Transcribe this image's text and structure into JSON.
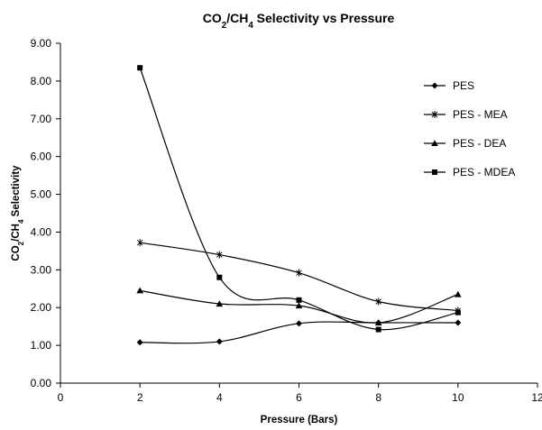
{
  "chart_data": {
    "type": "line",
    "title": "CO2/CH4 Selectivity vs Pressure",
    "xlabel": "Pressure (Bars)",
    "ylabel": "CO2/CH4 Selectivity",
    "xlim": [
      0,
      12
    ],
    "ylim": [
      0,
      9
    ],
    "xticks": [
      0,
      2,
      4,
      6,
      8,
      10,
      12
    ],
    "yticks": [
      "0.00",
      "1.00",
      "2.00",
      "3.00",
      "4.00",
      "5.00",
      "6.00",
      "7.00",
      "8.00",
      "9.00"
    ],
    "legend_position": "right",
    "grid": false,
    "smooth_lines": true,
    "x": [
      2,
      4,
      6,
      8,
      10
    ],
    "series": [
      {
        "name": "PES",
        "marker": "diamond",
        "values": [
          1.08,
          1.1,
          1.58,
          1.6,
          1.6
        ]
      },
      {
        "name": "PES - MEA",
        "marker": "asterisk",
        "values": [
          3.72,
          3.4,
          2.92,
          2.16,
          1.92
        ]
      },
      {
        "name": "PES - DEA",
        "marker": "triangle",
        "values": [
          2.45,
          2.1,
          2.05,
          1.6,
          2.35
        ]
      },
      {
        "name": "PES - MDEA",
        "marker": "square",
        "values": [
          8.35,
          2.8,
          2.2,
          1.42,
          1.87
        ]
      }
    ],
    "line_color": "#000000"
  }
}
